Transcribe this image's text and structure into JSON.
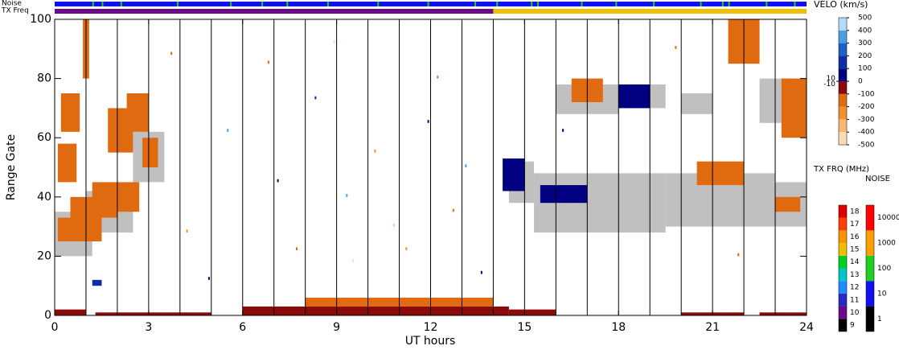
{
  "chart_data": {
    "type": "rti",
    "xlabel": "UT hours",
    "ylabel": "Range Gate",
    "xlim": [
      0,
      24
    ],
    "xticks": [
      0,
      3,
      6,
      9,
      12,
      15,
      18,
      21,
      24
    ],
    "ylim": [
      0,
      100
    ],
    "yticks": [
      0,
      20,
      40,
      60,
      80,
      100
    ],
    "hour_lines": true,
    "ground_color": "#c0c0c0",
    "noise_bar": {
      "label": "Noise",
      "base": 10,
      "spike_value": 100,
      "spikes": [
        1.2,
        1.5,
        2.1,
        3.9,
        5.6,
        6.6,
        7.4,
        8.7,
        10.3,
        11.9,
        13.4,
        14.1,
        15.2,
        15.4,
        16.8,
        17.9,
        19.1,
        20.6,
        21.3,
        21.5,
        22.7,
        23.6
      ]
    },
    "tx_bar": {
      "label": "TX Freq",
      "segments": [
        [
          0,
          14,
          10
        ],
        [
          14,
          24,
          15
        ]
      ]
    },
    "velo_scale": {
      "label": "VELO (km/s)",
      "lim": [
        -500,
        500
      ],
      "ticks": [
        500,
        400,
        300,
        200,
        100,
        0,
        -100,
        -200,
        -300,
        -400,
        -500
      ],
      "inner_ticks": [
        10,
        -10
      ],
      "colors": [
        "#fcdcb8",
        "#f8b870",
        "#f09030",
        "#e06a10",
        "#8b0a0a",
        "#000080",
        "#0c2da8",
        "#1e62c8",
        "#4c9ee2",
        "#b0dcf8"
      ]
    },
    "freq_scale": {
      "label": "TX FRQ (MHz)",
      "ticks": [
        9,
        10,
        11,
        12,
        13,
        14,
        15,
        16,
        17,
        18
      ],
      "colors": [
        "#000000",
        "#6a0a8a",
        "#2828c8",
        "#1e8cff",
        "#00c8c8",
        "#00d020",
        "#f0c000",
        "#ff9000",
        "#ff4000",
        "#e00000"
      ]
    },
    "noise_scale": {
      "label": "NOISE",
      "ticks": [
        1,
        10,
        100,
        1000,
        10000
      ],
      "colors": [
        "#000000",
        "#1010f0",
        "#20d020",
        "#ffa000",
        "#ff0000"
      ]
    },
    "ground": [
      [
        0,
        1.2,
        20,
        35
      ],
      [
        1,
        2.5,
        28,
        42
      ],
      [
        2.5,
        3.5,
        45,
        62
      ],
      [
        14.5,
        15.3,
        38,
        52
      ],
      [
        15.3,
        19.5,
        28,
        48
      ],
      [
        19.5,
        23,
        30,
        48
      ],
      [
        23,
        24,
        30,
        45
      ],
      [
        16,
        18,
        68,
        78
      ],
      [
        20,
        21,
        68,
        75
      ],
      [
        22.5,
        23.5,
        65,
        80
      ],
      [
        19,
        19.5,
        70,
        78
      ]
    ],
    "echoes": [
      [
        0,
        1,
        0,
        2,
        -100
      ],
      [
        1.3,
        5,
        0,
        1,
        -100
      ],
      [
        6,
        14.5,
        0,
        3,
        -100
      ],
      [
        8,
        14,
        3,
        6,
        -120
      ],
      [
        14.5,
        16,
        0,
        2,
        -100
      ],
      [
        20,
        22,
        0,
        1,
        -100
      ],
      [
        22.5,
        24,
        0,
        1,
        -100
      ],
      [
        0.1,
        0.7,
        45,
        58,
        -150
      ],
      [
        0.2,
        0.8,
        62,
        75,
        -150
      ],
      [
        0.1,
        0.5,
        25,
        33,
        -150
      ],
      [
        0.5,
        1.5,
        25,
        40,
        -120
      ],
      [
        1.2,
        2,
        33,
        45,
        -150
      ],
      [
        2,
        2.7,
        35,
        45,
        -150
      ],
      [
        1.7,
        2.5,
        55,
        70,
        -150
      ],
      [
        2.3,
        3,
        62,
        75,
        -150
      ],
      [
        2.8,
        3.3,
        50,
        60,
        -150
      ],
      [
        0.9,
        1.1,
        80,
        100,
        -150
      ],
      [
        14.3,
        15,
        42,
        53,
        50
      ],
      [
        15.5,
        17,
        38,
        44,
        60
      ],
      [
        16.5,
        17.5,
        72,
        80,
        -150
      ],
      [
        18,
        19,
        70,
        78,
        60
      ],
      [
        20.5,
        22,
        44,
        52,
        -150
      ],
      [
        21.5,
        22.5,
        85,
        100,
        -150
      ],
      [
        23,
        23.8,
        35,
        40,
        -150
      ],
      [
        23.2,
        24,
        60,
        80,
        -150
      ],
      [
        1.2,
        1.5,
        10,
        12,
        100
      ],
      [
        4.2,
        4.25,
        28,
        29,
        -250
      ],
      [
        5.5,
        5.55,
        62,
        63,
        350
      ],
      [
        7.1,
        7.15,
        45,
        46,
        60
      ],
      [
        8.3,
        8.35,
        73,
        74,
        150
      ],
      [
        9.3,
        9.35,
        40,
        41,
        300
      ],
      [
        9.5,
        9.55,
        18,
        19,
        -450
      ],
      [
        10.2,
        10.25,
        55,
        56,
        -250
      ],
      [
        10.8,
        10.85,
        30,
        31,
        400
      ],
      [
        11.2,
        11.25,
        22,
        23,
        -300
      ],
      [
        11.9,
        11.95,
        65,
        66,
        60
      ],
      [
        12.7,
        12.75,
        35,
        36,
        -150
      ],
      [
        13.1,
        13.15,
        50,
        51,
        350
      ],
      [
        13.6,
        13.65,
        14,
        15,
        60
      ],
      [
        6.8,
        6.85,
        85,
        86,
        -150
      ],
      [
        4.9,
        4.95,
        12,
        13,
        60
      ],
      [
        7.7,
        7.75,
        22,
        23,
        -150
      ],
      [
        8.9,
        8.95,
        92,
        93,
        -450
      ],
      [
        12.2,
        12.25,
        80,
        81,
        300
      ],
      [
        3.7,
        3.75,
        88,
        89,
        -150
      ],
      [
        16.2,
        16.25,
        62,
        63,
        60
      ],
      [
        19.8,
        19.85,
        90,
        91,
        -150
      ],
      [
        21.8,
        21.85,
        20,
        21,
        -150
      ]
    ]
  }
}
